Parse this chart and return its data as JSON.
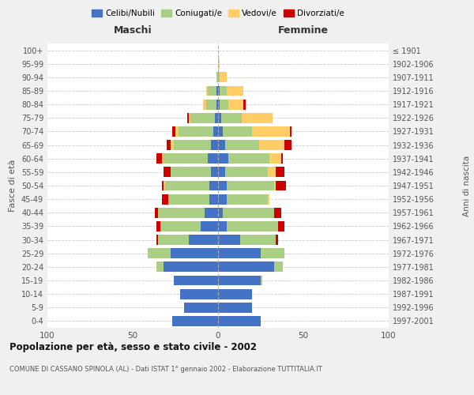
{
  "age_groups": [
    "0-4",
    "5-9",
    "10-14",
    "15-19",
    "20-24",
    "25-29",
    "30-34",
    "35-39",
    "40-44",
    "45-49",
    "50-54",
    "55-59",
    "60-64",
    "65-69",
    "70-74",
    "75-79",
    "80-84",
    "85-89",
    "90-94",
    "95-99",
    "100+"
  ],
  "birth_years": [
    "1997-2001",
    "1992-1996",
    "1987-1991",
    "1982-1986",
    "1977-1981",
    "1972-1976",
    "1967-1971",
    "1962-1966",
    "1957-1961",
    "1952-1956",
    "1947-1951",
    "1942-1946",
    "1937-1941",
    "1932-1936",
    "1927-1931",
    "1922-1926",
    "1917-1921",
    "1912-1916",
    "1907-1911",
    "1902-1906",
    "≤ 1901"
  ],
  "maschi": {
    "celibi": [
      27,
      20,
      22,
      26,
      32,
      28,
      17,
      10,
      8,
      5,
      5,
      4,
      6,
      4,
      3,
      2,
      1,
      1,
      0,
      0,
      0
    ],
    "coniugati": [
      0,
      0,
      0,
      0,
      4,
      13,
      18,
      24,
      27,
      24,
      26,
      24,
      26,
      22,
      20,
      14,
      6,
      5,
      1,
      0,
      0
    ],
    "vedovi": [
      0,
      0,
      0,
      0,
      0,
      0,
      0,
      0,
      0,
      0,
      1,
      0,
      1,
      2,
      2,
      1,
      2,
      1,
      0,
      0,
      0
    ],
    "divorziati": [
      0,
      0,
      0,
      0,
      0,
      0,
      1,
      2,
      2,
      4,
      1,
      4,
      3,
      2,
      2,
      1,
      0,
      0,
      0,
      0,
      0
    ]
  },
  "femmine": {
    "nubili": [
      25,
      20,
      20,
      25,
      33,
      25,
      13,
      5,
      3,
      5,
      5,
      4,
      6,
      4,
      3,
      2,
      1,
      1,
      0,
      0,
      0
    ],
    "coniugate": [
      0,
      0,
      0,
      1,
      5,
      14,
      21,
      30,
      30,
      24,
      28,
      25,
      24,
      20,
      17,
      12,
      5,
      4,
      1,
      0,
      0
    ],
    "vedove": [
      0,
      0,
      0,
      0,
      0,
      0,
      0,
      0,
      0,
      1,
      1,
      5,
      7,
      15,
      22,
      18,
      9,
      10,
      4,
      1,
      0
    ],
    "divorziate": [
      0,
      0,
      0,
      0,
      0,
      0,
      1,
      4,
      4,
      0,
      6,
      5,
      1,
      4,
      1,
      0,
      1,
      0,
      0,
      0,
      0
    ]
  },
  "colors": {
    "celibi_nubili": "#4472C4",
    "coniugati": "#AACF84",
    "vedovi": "#FFCC66",
    "divorziati": "#CC0000"
  },
  "xlim": 100,
  "title": "Popolazione per età, sesso e stato civile - 2002",
  "subtitle": "COMUNE DI CASSANO SPINOLA (AL) - Dati ISTAT 1° gennaio 2002 - Elaborazione TUTTITALIA.IT",
  "ylabel": "Fasce di età",
  "ylabel2": "Anni di nascita",
  "xlabel_maschi": "Maschi",
  "xlabel_femmine": "Femmine",
  "legend_labels": [
    "Celibi/Nubili",
    "Coniugati/e",
    "Vedovi/e",
    "Divorziati/e"
  ],
  "bg_color": "#f0f0f0",
  "plot_bg_color": "#ffffff"
}
